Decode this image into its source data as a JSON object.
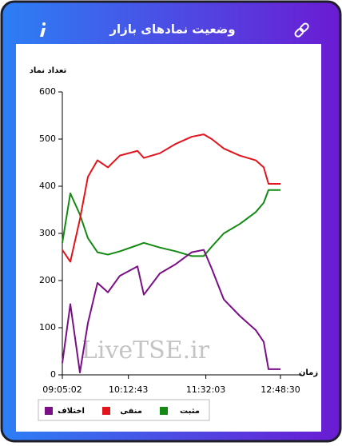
{
  "header": {
    "title": "وضعیت نمادهای بازار"
  },
  "chart_data": {
    "type": "line",
    "y_label": "تعداد نماد",
    "x_label": "زمان",
    "watermark": "LiveTSE.ir",
    "x": [
      "09:05:02",
      "09:13:14",
      "09:23:02",
      "09:31:14",
      "09:41:02",
      "09:51:44",
      "10:03:56",
      "10:22:02",
      "10:28:32",
      "10:44:56",
      "11:01:20",
      "11:17:38",
      "11:29:56",
      "11:38:08",
      "11:50:26",
      "12:06:50",
      "12:23:08",
      "12:31:20",
      "12:36:14",
      "12:48:30"
    ],
    "series": [
      {
        "name": "مثبت",
        "color": "#138a13",
        "values": [
          280,
          385,
          340,
          290,
          260,
          255,
          262,
          275,
          280,
          270,
          262,
          252,
          252,
          272,
          300,
          320,
          345,
          365,
          392,
          392
        ]
      },
      {
        "name": "منفی",
        "color": "#e3141b",
        "values": [
          265,
          240,
          330,
          420,
          455,
          440,
          465,
          475,
          460,
          470,
          490,
          505,
          510,
          500,
          480,
          465,
          455,
          440,
          405,
          405
        ]
      },
      {
        "name": "اختلاف",
        "color": "#7a0f86",
        "values": [
          25,
          150,
          5,
          110,
          195,
          175,
          210,
          230,
          170,
          215,
          235,
          260,
          265,
          225,
          160,
          125,
          95,
          70,
          12,
          12
        ]
      }
    ],
    "xlim": [
      "09:05:02",
      "12:48:30"
    ],
    "xticks": [
      "09:05:02",
      "10:12:43",
      "11:32:03",
      "12:48:30"
    ],
    "ylim": [
      0,
      600
    ],
    "yticks": [
      0,
      100,
      200,
      300,
      400,
      500,
      600
    ]
  }
}
